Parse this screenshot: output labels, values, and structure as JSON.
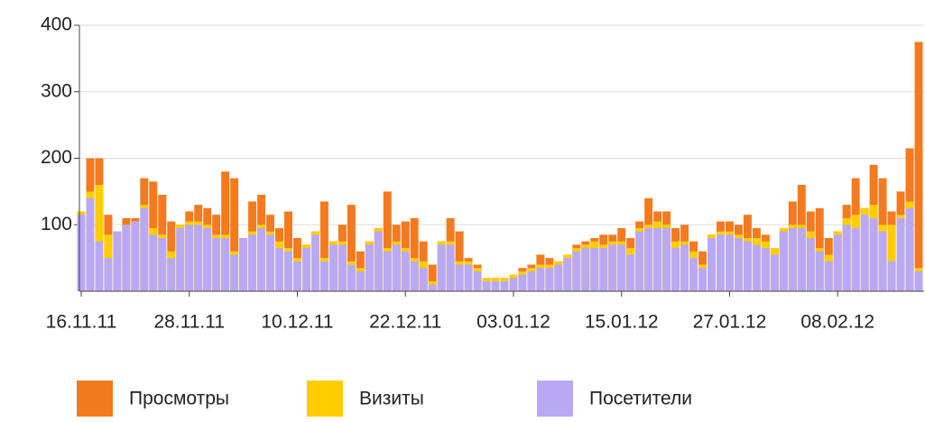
{
  "chart_data": {
    "type": "bar",
    "overlap": true,
    "categories": [
      "16.11.11",
      null,
      null,
      null,
      null,
      null,
      null,
      null,
      null,
      null,
      null,
      null,
      "28.11.11",
      null,
      null,
      null,
      null,
      null,
      null,
      null,
      null,
      null,
      null,
      null,
      "10.12.11",
      null,
      null,
      null,
      null,
      null,
      null,
      null,
      null,
      null,
      null,
      null,
      "22.12.11",
      null,
      null,
      null,
      null,
      null,
      null,
      null,
      null,
      null,
      null,
      null,
      "03.01.12",
      null,
      null,
      null,
      null,
      null,
      null,
      null,
      null,
      null,
      null,
      null,
      "15.01.12",
      null,
      null,
      null,
      null,
      null,
      null,
      null,
      null,
      null,
      null,
      null,
      "27.01.12",
      null,
      null,
      null,
      null,
      null,
      null,
      null,
      null,
      null,
      null,
      null,
      "08.02.12",
      null,
      null,
      null,
      null,
      null,
      null,
      null,
      null,
      null
    ],
    "series": [
      {
        "name": "Просмотры",
        "color": "#f47a1f",
        "values": [
          120,
          200,
          200,
          115,
          90,
          110,
          110,
          170,
          165,
          145,
          105,
          100,
          120,
          130,
          125,
          115,
          180,
          170,
          80,
          135,
          145,
          115,
          95,
          120,
          80,
          70,
          90,
          135,
          75,
          100,
          130,
          60,
          75,
          95,
          150,
          100,
          105,
          110,
          75,
          40,
          75,
          110,
          90,
          50,
          40,
          20,
          20,
          20,
          25,
          35,
          40,
          55,
          50,
          45,
          55,
          70,
          75,
          80,
          85,
          85,
          95,
          80,
          105,
          140,
          120,
          120,
          95,
          100,
          75,
          60,
          85,
          105,
          105,
          100,
          115,
          95,
          85,
          65,
          95,
          135,
          160,
          120,
          125,
          80,
          90,
          130,
          170,
          125,
          190,
          170,
          120,
          150,
          215,
          375
        ]
      },
      {
        "name": "Визиты",
        "color": "#ffcc00",
        "values": [
          120,
          150,
          160,
          85,
          90,
          100,
          105,
          130,
          95,
          85,
          60,
          100,
          105,
          105,
          100,
          85,
          85,
          60,
          80,
          90,
          100,
          90,
          75,
          65,
          50,
          70,
          90,
          50,
          75,
          75,
          45,
          35,
          75,
          95,
          65,
          75,
          65,
          50,
          45,
          15,
          75,
          75,
          45,
          45,
          35,
          20,
          20,
          20,
          25,
          30,
          35,
          40,
          40,
          45,
          55,
          65,
          70,
          75,
          70,
          75,
          75,
          65,
          95,
          100,
          105,
          100,
          75,
          75,
          60,
          40,
          85,
          90,
          90,
          85,
          80,
          80,
          75,
          65,
          95,
          100,
          100,
          90,
          65,
          55,
          90,
          110,
          115,
          125,
          130,
          100,
          100,
          115,
          135,
          35
        ]
      },
      {
        "name": "Посетители",
        "color": "#b9a9f4",
        "values": [
          115,
          140,
          75,
          50,
          90,
          100,
          105,
          125,
          85,
          80,
          50,
          95,
          100,
          100,
          95,
          80,
          80,
          55,
          80,
          85,
          95,
          85,
          65,
          60,
          45,
          65,
          85,
          45,
          70,
          70,
          40,
          30,
          70,
          90,
          60,
          70,
          60,
          45,
          35,
          10,
          70,
          70,
          40,
          40,
          30,
          15,
          15,
          15,
          20,
          25,
          30,
          35,
          35,
          40,
          50,
          60,
          65,
          65,
          65,
          70,
          70,
          55,
          90,
          95,
          95,
          95,
          65,
          70,
          50,
          35,
          80,
          85,
          85,
          80,
          75,
          70,
          65,
          55,
          90,
          95,
          95,
          80,
          60,
          45,
          85,
          100,
          95,
          115,
          110,
          90,
          45,
          110,
          125,
          30
        ]
      }
    ],
    "ylim": [
      0,
      400
    ],
    "yticks": [
      100,
      200,
      300,
      400
    ],
    "grid": true
  }
}
